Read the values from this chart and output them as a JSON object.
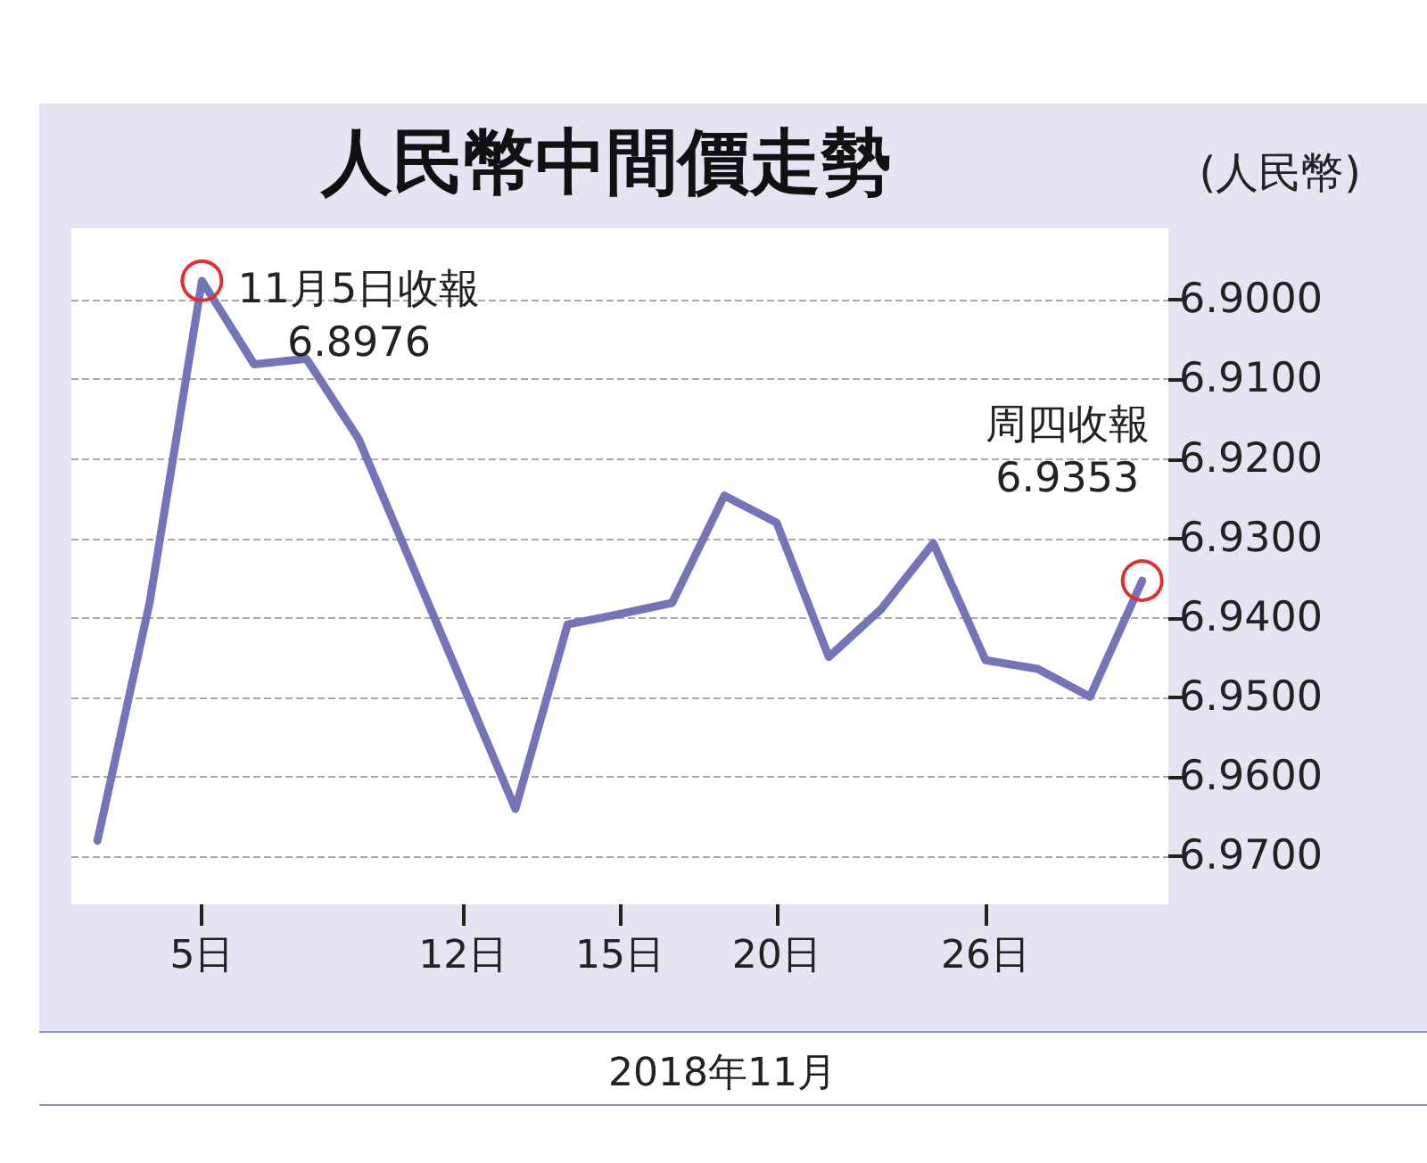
{
  "chart_data": {
    "type": "line",
    "title": "人民幣中間價走勢",
    "ylabel": "(人民幣)",
    "xlabel": "2018年11月",
    "categories": [
      null,
      null,
      "5日",
      null,
      null,
      null,
      null,
      "12日",
      null,
      null,
      "15日",
      null,
      null,
      "20日",
      null,
      null,
      null,
      "26日",
      null,
      null,
      null
    ],
    "series": [
      {
        "color": "#7474b8",
        "values": [
          6.968,
          6.938,
          6.8976,
          6.9081,
          6.9074,
          6.9175,
          6.933,
          6.9485,
          6.964,
          6.9408,
          6.9395,
          6.9381,
          6.9246,
          6.928,
          6.9449,
          6.9389,
          6.9306,
          6.9453,
          6.9464,
          6.9499,
          6.9353
        ]
      }
    ],
    "ylim": [
      6.976,
      6.891
    ],
    "yticks": [
      {
        "value": 6.9,
        "label": "6.9000"
      },
      {
        "value": 6.91,
        "label": "6.9100"
      },
      {
        "value": 6.92,
        "label": "6.9200"
      },
      {
        "value": 6.93,
        "label": "6.9300"
      },
      {
        "value": 6.94,
        "label": "6.9400"
      },
      {
        "value": 6.95,
        "label": "6.9500"
      },
      {
        "value": 6.96,
        "label": "6.9600"
      },
      {
        "value": 6.97,
        "label": "6.9700"
      }
    ],
    "annotations": [
      {
        "text": "11月5日收報\n6.8976",
        "x": "5日",
        "y": 6.8976
      },
      "周四收報\n6.9353"
    ],
    "grid": "y",
    "marker": "none",
    "line_style": "solid"
  }
}
